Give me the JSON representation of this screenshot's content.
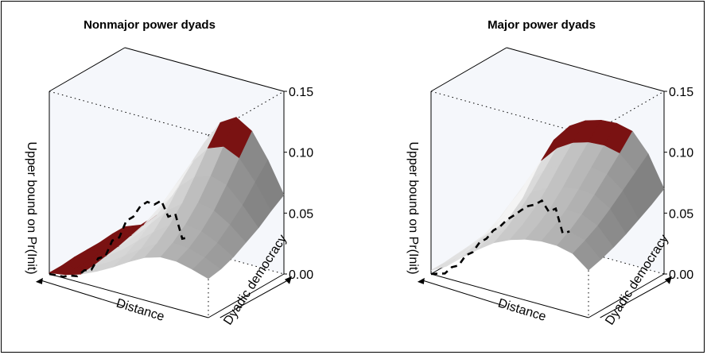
{
  "colors": {
    "surface_light": "#f2f2f2",
    "surface_dark": "#8c8c8c",
    "highlight": "#7a1212",
    "background_panel": "#f5f7fb",
    "line": "#000000"
  },
  "chart_data": [
    {
      "type": "surface3d",
      "title": "Nonmajor power dyads",
      "zlabel": "Upper bound on Pr(Init)",
      "xlabel": "Distance",
      "ylabel": "Dyadic democracy",
      "zlim": [
        0,
        0.15
      ],
      "z_ticks": [
        "0.00",
        "0.05",
        "0.10",
        "0.15"
      ],
      "series": [
        {
          "values": [
            [
              0.003,
              0.008,
              0.02,
              0.04,
              0.065,
              0.09,
              0.11,
              0.118,
              0.11,
              0.09,
              0.065
            ],
            [
              0.003,
              0.007,
              0.018,
              0.036,
              0.058,
              0.08,
              0.095,
              0.1,
              0.094,
              0.078,
              0.058
            ],
            [
              0.002,
              0.006,
              0.015,
              0.03,
              0.048,
              0.066,
              0.078,
              0.082,
              0.078,
              0.065,
              0.05
            ],
            [
              0.002,
              0.005,
              0.012,
              0.024,
              0.038,
              0.052,
              0.062,
              0.066,
              0.063,
              0.055,
              0.044
            ],
            [
              0.002,
              0.004,
              0.01,
              0.019,
              0.03,
              0.041,
              0.05,
              0.054,
              0.052,
              0.046,
              0.038
            ],
            [
              0.001,
              0.003,
              0.008,
              0.015,
              0.024,
              0.033,
              0.041,
              0.045,
              0.044,
              0.04,
              0.034
            ],
            [
              0.001,
              0.003,
              0.007,
              0.013,
              0.02,
              0.028,
              0.035,
              0.039,
              0.039,
              0.036,
              0.032
            ]
          ]
        }
      ]
    },
    {
      "type": "surface3d",
      "title": "Major power dyads",
      "zlabel": "Upper bound on Pr(Init)",
      "xlabel": "Distance",
      "ylabel": "Dyadic democracy",
      "zlim": [
        0,
        0.15
      ],
      "z_ticks": [
        "0.00",
        "0.05",
        "0.10",
        "0.15"
      ],
      "series": [
        {
          "values": [
            [
              0.008,
              0.03,
              0.06,
              0.085,
              0.1,
              0.108,
              0.112,
              0.113,
              0.11,
              0.095,
              0.07
            ],
            [
              0.007,
              0.026,
              0.052,
              0.074,
              0.088,
              0.096,
              0.1,
              0.101,
              0.098,
              0.086,
              0.063
            ],
            [
              0.006,
              0.022,
              0.044,
              0.063,
              0.076,
              0.084,
              0.088,
              0.089,
              0.087,
              0.077,
              0.057
            ],
            [
              0.005,
              0.018,
              0.036,
              0.052,
              0.064,
              0.071,
              0.075,
              0.077,
              0.076,
              0.068,
              0.051
            ],
            [
              0.004,
              0.015,
              0.03,
              0.043,
              0.054,
              0.06,
              0.064,
              0.066,
              0.066,
              0.06,
              0.046
            ],
            [
              0.003,
              0.012,
              0.025,
              0.036,
              0.046,
              0.052,
              0.056,
              0.058,
              0.058,
              0.054,
              0.042
            ],
            [
              0.003,
              0.01,
              0.021,
              0.031,
              0.04,
              0.046,
              0.05,
              0.052,
              0.052,
              0.049,
              0.039
            ]
          ]
        }
      ]
    }
  ]
}
